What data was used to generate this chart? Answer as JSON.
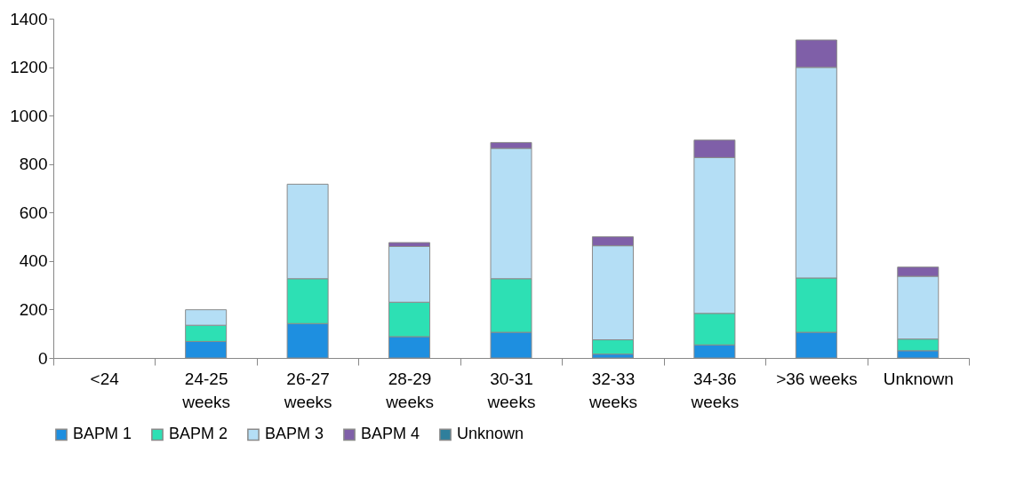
{
  "chart_data": {
    "type": "bar",
    "stacked": true,
    "categories": [
      "<24",
      "24-25 weeks",
      "26-27 weeks",
      "28-29 weeks",
      "30-31 weeks",
      "32-33 weeks",
      "34-36 weeks",
      ">36 weeks",
      "Unknown"
    ],
    "series": [
      {
        "name": "BAPM 1",
        "color": "#1e8fe0",
        "values": [
          null,
          68,
          142,
          88,
          106,
          16,
          54,
          106,
          30
        ]
      },
      {
        "name": "BAPM 2",
        "color": "#2de0b4",
        "values": [
          null,
          67,
          185,
          142,
          221,
          59,
          130,
          224,
          48
        ]
      },
      {
        "name": "BAPM 3",
        "color": "#b4def5",
        "values": [
          null,
          64,
          390,
          230,
          538,
          388,
          643,
          869,
          259
        ]
      },
      {
        "name": "BAPM 4",
        "color": "#7f5fa8",
        "values": [
          null,
          null,
          null,
          16,
          24,
          37,
          72,
          113,
          38
        ]
      },
      {
        "name": "Unknown",
        "color": "#2f7f9c",
        "values": [
          null,
          null,
          null,
          null,
          null,
          null,
          null,
          null,
          null
        ]
      }
    ],
    "ylim": [
      0,
      1400
    ],
    "yticks": [
      0,
      200,
      400,
      600,
      800,
      1000,
      1200,
      1400
    ],
    "grid": false,
    "legend": "bottom"
  }
}
